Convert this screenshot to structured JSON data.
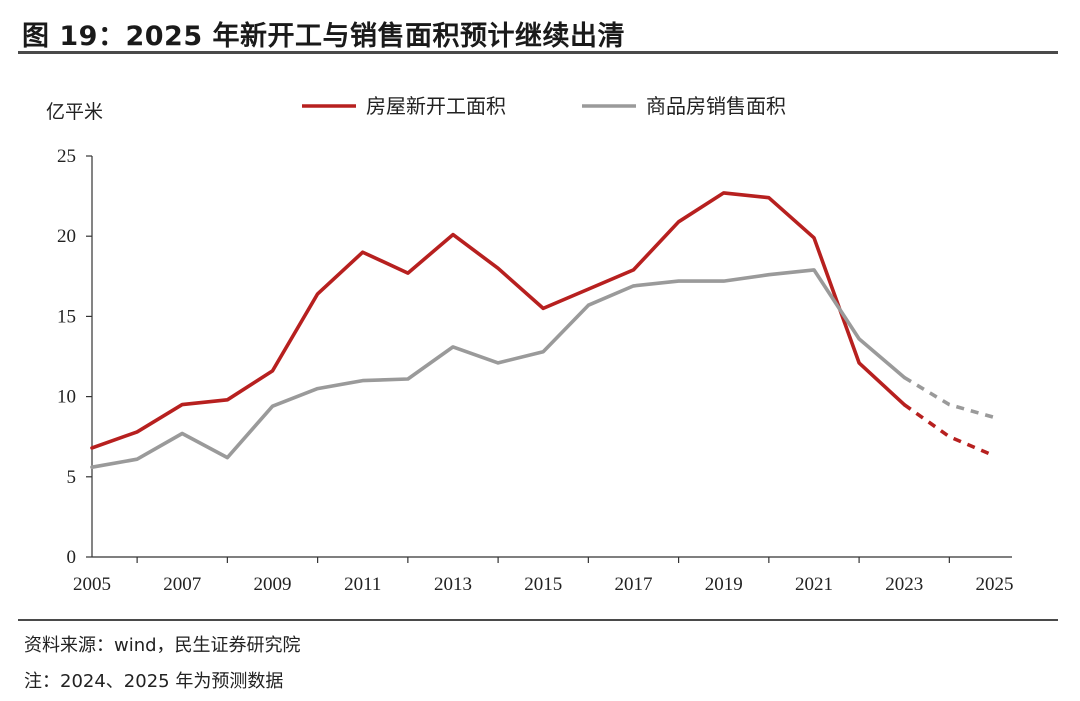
{
  "figure_title": "图 19：2025 年新开工与销售面积预计继续出清",
  "source_note": "资料来源：wind，民生证券研究院",
  "foot_note": "注：2024、2025 年为预测数据",
  "chart_data": {
    "type": "line",
    "title": "",
    "ylabel": "亿平米",
    "xlabel": "",
    "x": [
      2005,
      2006,
      2007,
      2008,
      2009,
      2010,
      2011,
      2012,
      2013,
      2014,
      2015,
      2016,
      2017,
      2018,
      2019,
      2020,
      2021,
      2022,
      2023,
      2024,
      2025
    ],
    "x_ticks": [
      "2005",
      "2007",
      "2009",
      "2011",
      "2013",
      "2015",
      "2017",
      "2019",
      "2021",
      "2023",
      "2025"
    ],
    "ylim": [
      0,
      25
    ],
    "y_ticks": [
      "0",
      "5",
      "10",
      "15",
      "20",
      "25"
    ],
    "forecast_from": 2023,
    "legend_position": "top",
    "grid": false,
    "series": [
      {
        "name": "房屋新开工面积",
        "color": "#b7201f",
        "values": [
          6.8,
          7.8,
          9.5,
          9.8,
          11.6,
          16.4,
          19.0,
          17.7,
          20.1,
          18.0,
          15.5,
          16.7,
          17.9,
          20.9,
          22.7,
          22.4,
          19.9,
          12.1,
          9.5,
          7.5,
          6.3
        ]
      },
      {
        "name": "商品房销售面积",
        "color": "#9a9a9a",
        "values": [
          5.6,
          6.1,
          7.7,
          6.2,
          9.4,
          10.5,
          11.0,
          11.1,
          13.1,
          12.1,
          12.8,
          15.7,
          16.9,
          17.2,
          17.2,
          17.6,
          17.9,
          13.6,
          11.2,
          9.5,
          8.7
        ]
      }
    ]
  }
}
